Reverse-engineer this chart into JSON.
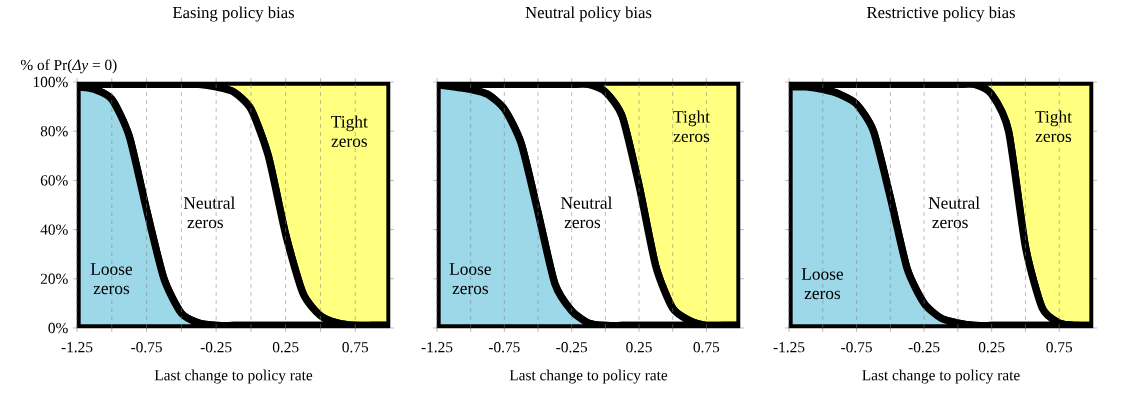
{
  "chart_data": [
    {
      "type": "area",
      "stacked": true,
      "title": "Easing policy bias",
      "xlabel": "Last change to policy rate",
      "ylabel": "% of Pr(*Δy* = 0)",
      "x": [
        -1.25,
        -1.125,
        -1,
        -0.875,
        -0.75,
        -0.625,
        -0.5,
        -0.375,
        -0.25,
        -0.125,
        0,
        0.125,
        0.25,
        0.375,
        0.5,
        0.625,
        0.75,
        0.875,
        1.0
      ],
      "series": [
        {
          "color": "#9dd8e8",
          "values": [
            98,
            97,
            93,
            78,
            48,
            20,
            6,
            2,
            1,
            1,
            1,
            1,
            1,
            1,
            1,
            1,
            1,
            1,
            1
          ]
        },
        {
          "color": "#ffffff",
          "values": [
            1,
            2,
            6,
            21,
            51,
            79,
            93,
            97,
            97,
            95,
            88,
            69,
            37,
            13,
            4,
            1,
            0,
            0,
            0
          ]
        },
        {
          "color": "#ffff80",
          "values": [
            1,
            1,
            1,
            1,
            1,
            1,
            1,
            1,
            2,
            4,
            11,
            30,
            62,
            86,
            95,
            98,
            99,
            99,
            99
          ]
        }
      ],
      "xlim": [
        -1.25,
        1.0
      ],
      "ylim": [
        0,
        100
      ],
      "xticks": [
        {
          "value": -1.25,
          "label": "-1.25"
        },
        {
          "value": -1,
          "label": null
        },
        {
          "value": -0.75,
          "label": "-0.75"
        },
        {
          "value": -0.5,
          "label": null
        },
        {
          "value": -0.25,
          "label": "-0.25"
        },
        {
          "value": 0,
          "label": null
        },
        {
          "value": 0.25,
          "label": "0.25"
        },
        {
          "value": 0.5,
          "label": null
        },
        {
          "value": 0.75,
          "label": "0.75"
        }
      ],
      "yticks": [
        {
          "value": 0,
          "label": "0%"
        },
        {
          "value": 20,
          "label": "20%"
        },
        {
          "value": 40,
          "label": "40%"
        },
        {
          "value": 60,
          "label": "60%"
        },
        {
          "value": 80,
          "label": "80%"
        },
        {
          "value": 100,
          "label": "100%"
        }
      ],
      "grid": "x",
      "annotations": [
        "Loose zeros",
        "Neutral zeros",
        "Tight zeros"
      ]
    },
    {
      "type": "area",
      "stacked": true,
      "title": "Neutral policy bias",
      "xlabel": "Last change to policy rate",
      "x": [
        -1.25,
        -1.125,
        -1,
        -0.875,
        -0.75,
        -0.625,
        -0.5,
        -0.375,
        -0.25,
        -0.125,
        0,
        0.125,
        0.25,
        0.375,
        0.5,
        0.625,
        0.75,
        0.875,
        1.0
      ],
      "series": [
        {
          "color": "#9dd8e8",
          "values": [
            99,
            98,
            97,
            95,
            89,
            75,
            47,
            18,
            7,
            2,
            1,
            1,
            1,
            1,
            1,
            1,
            1,
            1,
            1
          ]
        },
        {
          "color": "#ffffff",
          "values": [
            0,
            1,
            2,
            4,
            10,
            24,
            52,
            81,
            92,
            97,
            95,
            85,
            57,
            24,
            7,
            2,
            0,
            0,
            0
          ]
        },
        {
          "color": "#ffff80",
          "values": [
            1,
            1,
            1,
            1,
            1,
            1,
            1,
            1,
            1,
            1,
            4,
            14,
            42,
            75,
            92,
            97,
            99,
            99,
            99
          ]
        }
      ],
      "xlim": [
        -1.25,
        1.0
      ],
      "ylim": [
        0,
        100
      ],
      "xticks": [
        {
          "value": -1.25,
          "label": "-1.25"
        },
        {
          "value": -1,
          "label": null
        },
        {
          "value": -0.75,
          "label": "-0.75"
        },
        {
          "value": -0.5,
          "label": null
        },
        {
          "value": -0.25,
          "label": "-0.25"
        },
        {
          "value": 0,
          "label": null
        },
        {
          "value": 0.25,
          "label": "0.25"
        },
        {
          "value": 0.5,
          "label": null
        },
        {
          "value": 0.75,
          "label": "0.75"
        }
      ],
      "yticks": [
        0,
        20,
        40,
        60,
        80,
        100
      ],
      "tick_labels": "x",
      "grid": "x",
      "annotations": [
        "Loose zeros",
        "Neutral zeros",
        "Tight zeros"
      ]
    },
    {
      "type": "area",
      "stacked": true,
      "title": "Restrictive policy bias",
      "xlabel": "Last change to policy rate",
      "x": [
        -1.25,
        -1.125,
        -1,
        -0.875,
        -0.75,
        -0.625,
        -0.5,
        -0.375,
        -0.25,
        -0.125,
        0,
        0.125,
        0.25,
        0.375,
        0.5,
        0.625,
        0.75,
        0.875,
        1.0
      ],
      "series": [
        {
          "color": "#9dd8e8",
          "values": [
            98,
            98,
            97,
            95,
            91,
            80,
            53,
            24,
            10,
            4,
            2,
            1,
            1,
            1,
            1,
            1,
            1,
            1,
            1
          ]
        },
        {
          "color": "#ffffff",
          "values": [
            1,
            1,
            2,
            4,
            8,
            19,
            46,
            75,
            89,
            95,
            97,
            98,
            94,
            79,
            32,
            7,
            1,
            0,
            0
          ]
        },
        {
          "color": "#ffff80",
          "values": [
            1,
            1,
            1,
            1,
            1,
            1,
            1,
            1,
            1,
            1,
            1,
            1,
            5,
            20,
            67,
            92,
            98,
            99,
            99
          ]
        }
      ],
      "xlim": [
        -1.25,
        1.0
      ],
      "ylim": [
        0,
        100
      ],
      "xticks": [
        {
          "value": -1.25,
          "label": "-1.25"
        },
        {
          "value": -1,
          "label": null
        },
        {
          "value": -0.75,
          "label": "-0.75"
        },
        {
          "value": -0.5,
          "label": null
        },
        {
          "value": -0.25,
          "label": "-0.25"
        },
        {
          "value": 0,
          "label": null
        },
        {
          "value": 0.25,
          "label": "0.25"
        },
        {
          "value": 0.5,
          "label": null
        },
        {
          "value": 0.75,
          "label": "0.75"
        }
      ],
      "yticks": [
        0,
        20,
        40,
        60,
        80,
        100
      ],
      "tick_labels": "x",
      "grid": "x",
      "annotations": [
        "Loose zeros",
        "Neutral zeros",
        "Tight zeros"
      ]
    }
  ]
}
